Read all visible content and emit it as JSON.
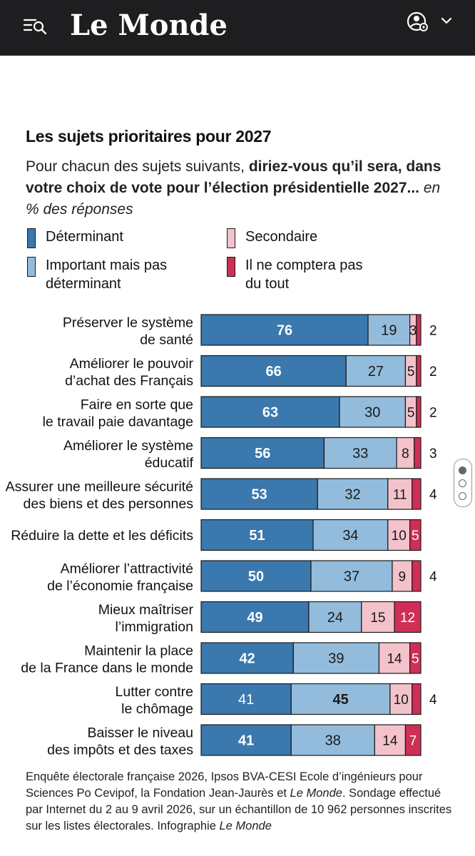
{
  "header": {
    "logo_text": "Le Monde"
  },
  "chart_data": {
    "type": "bar",
    "orientation": "horizontal",
    "stacked": true,
    "title": "Les sujets prioritaires pour 2027",
    "subtitle": {
      "part1": "Pour chacun des sujets suivants, ",
      "part2": "diriez-vous qu’il sera, dans votre choix de vote pour l’élection présidentielle 2027...",
      "part3": " en % des réponses"
    },
    "legend_placement": "top",
    "series": [
      {
        "name": "Déterminant",
        "color": "#3a78ad",
        "values": [
          76,
          66,
          63,
          56,
          53,
          51,
          50,
          49,
          42,
          41,
          41
        ]
      },
      {
        "name": "Important mais pas déterminant",
        "color": "#93bcdc",
        "values": [
          19,
          27,
          30,
          33,
          32,
          34,
          37,
          24,
          39,
          45,
          38
        ]
      },
      {
        "name": "Secondaire",
        "color": "#f3c2cb",
        "values": [
          3,
          5,
          5,
          8,
          11,
          10,
          9,
          15,
          14,
          10,
          14
        ]
      },
      {
        "name": "Il ne comptera pas du tout",
        "color": "#cf2f55",
        "values": [
          2,
          2,
          2,
          3,
          4,
          5,
          4,
          12,
          5,
          4,
          7
        ]
      }
    ],
    "categories": [
      {
        "line1": "Préserver le système",
        "line2": "de santé"
      },
      {
        "line1": "Améliorer le pouvoir",
        "line2": "d’achat des Français"
      },
      {
        "line1": "Faire en sorte que",
        "line2": "le travail paie davantage"
      },
      {
        "line1": "Améliorer le système",
        "line2": "éducatif"
      },
      {
        "line1": "Assurer une meilleure sécurité",
        "line2": "des biens et des personnes"
      },
      {
        "line1": "Réduire la dette et les déficits",
        "line2": ""
      },
      {
        "line1": "Améliorer l’attractivité",
        "line2": "de l’économie française"
      },
      {
        "line1": "Mieux maîtriser",
        "line2": "l’immigration"
      },
      {
        "line1": "Maintenir la place",
        "line2": "de la France dans le monde"
      },
      {
        "line1": "Lutter contre",
        "line2": "le chômage"
      },
      {
        "line1": "Baisser le niveau",
        "line2": "des impôts et des taxes"
      }
    ],
    "bold_segment": [
      "determinant",
      "determinant",
      "determinant",
      "determinant",
      "determinant",
      "determinant",
      "determinant",
      "determinant",
      "determinant",
      "important",
      "determinant"
    ],
    "last_label_outside": [
      true,
      true,
      true,
      true,
      true,
      false,
      true,
      false,
      false,
      true,
      false
    ]
  },
  "footer": {
    "line1": "Enquête électorale française 2026, Ipsos BVA-CESI Ecole d’ingénieurs pour Sciences Po Cevipof, la Fondation Jean-Jaurès et ",
    "le_monde": "Le Monde",
    "line1_end": ".",
    "line2": " Sondage effectué par Internet du 2 au 9 avril 2026, sur un échantillon de 10 962 personnes inscrites sur les listes électorales. ",
    "infographie": "Infographie ",
    "infographie_source": "Le Monde"
  }
}
